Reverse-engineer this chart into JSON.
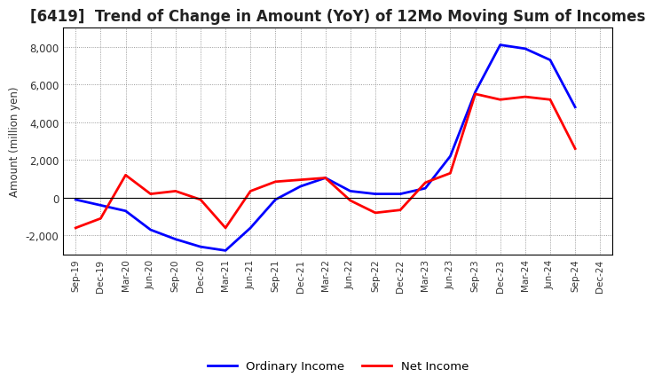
{
  "title": "[6419]  Trend of Change in Amount (YoY) of 12Mo Moving Sum of Incomes",
  "ylabel": "Amount (million yen)",
  "labels": [
    "Sep-19",
    "Dec-19",
    "Mar-20",
    "Jun-20",
    "Sep-20",
    "Dec-20",
    "Mar-21",
    "Jun-21",
    "Sep-21",
    "Dec-21",
    "Mar-22",
    "Jun-22",
    "Sep-22",
    "Dec-22",
    "Mar-23",
    "Jun-23",
    "Sep-23",
    "Dec-23",
    "Mar-24",
    "Jun-24",
    "Sep-24",
    "Dec-24"
  ],
  "ordinary_income": [
    -100,
    -400,
    -700,
    -1700,
    -2200,
    -2600,
    -2800,
    -1600,
    -100,
    600,
    1050,
    350,
    200,
    200,
    500,
    2200,
    5600,
    8100,
    7900,
    7300,
    4800,
    null
  ],
  "net_income": [
    -1600,
    -1100,
    1200,
    200,
    350,
    -100,
    -1600,
    350,
    850,
    950,
    1050,
    -150,
    -800,
    -650,
    800,
    1300,
    5500,
    5200,
    5350,
    5200,
    2600,
    null
  ],
  "ordinary_color": "#0000ff",
  "net_color": "#ff0000",
  "ylim": [
    -3000,
    9000
  ],
  "yticks": [
    -2000,
    0,
    2000,
    4000,
    6000,
    8000
  ],
  "line_width": 2.0,
  "title_fontsize": 12,
  "legend_labels": [
    "Ordinary Income",
    "Net Income"
  ]
}
